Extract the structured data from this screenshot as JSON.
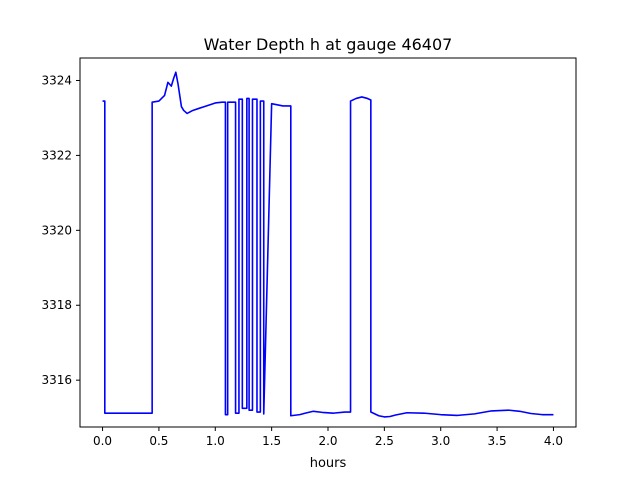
{
  "chart_data": {
    "type": "line",
    "title": "Water Depth h at gauge 46407",
    "xlabel": "hours",
    "ylabel": "",
    "xlim": [
      -0.2,
      4.2
    ],
    "ylim": [
      3314.75,
      3324.6
    ],
    "xticks": [
      0.0,
      0.5,
      1.0,
      1.5,
      2.0,
      2.5,
      3.0,
      3.5,
      4.0
    ],
    "xtick_labels": [
      "0.0",
      "0.5",
      "1.0",
      "1.5",
      "2.0",
      "2.5",
      "3.0",
      "3.5",
      "4.0"
    ],
    "yticks": [
      3316,
      3318,
      3320,
      3322,
      3324
    ],
    "ytick_labels": [
      "3316",
      "3318",
      "3320",
      "3322",
      "3324"
    ],
    "grid": false,
    "line_color": "#0000ff",
    "series": [
      {
        "x": [
          0.0,
          0.02,
          0.02,
          0.44,
          0.44,
          0.5,
          0.55,
          0.58,
          0.61,
          0.63,
          0.65,
          0.67,
          0.7,
          0.72,
          0.75,
          0.8,
          0.85,
          0.9,
          0.95,
          1.0,
          1.06,
          1.09,
          1.09,
          1.11,
          1.11,
          1.18,
          1.18,
          1.21,
          1.21,
          1.24,
          1.24,
          1.28,
          1.28,
          1.3,
          1.3,
          1.33,
          1.33,
          1.37,
          1.37,
          1.4,
          1.4,
          1.43,
          1.43,
          1.5,
          1.6,
          1.67,
          1.67,
          1.75,
          1.8,
          1.87,
          1.95,
          2.05,
          2.15,
          2.2,
          2.2,
          2.25,
          2.3,
          2.35,
          2.38,
          2.38,
          2.45,
          2.5,
          2.55,
          2.6,
          2.7,
          2.85,
          3.0,
          3.15,
          3.3,
          3.45,
          3.6,
          3.7,
          3.8,
          3.9,
          4.0
        ],
        "y": [
          3323.45,
          3323.45,
          3315.12,
          3315.12,
          3323.42,
          3323.45,
          3323.6,
          3323.95,
          3323.85,
          3324.05,
          3324.22,
          3323.9,
          3323.3,
          3323.2,
          3323.12,
          3323.2,
          3323.25,
          3323.3,
          3323.35,
          3323.4,
          3323.42,
          3323.42,
          3315.08,
          3315.08,
          3323.42,
          3323.42,
          3315.12,
          3315.12,
          3323.5,
          3323.5,
          3315.25,
          3315.25,
          3323.52,
          3323.52,
          3315.2,
          3315.2,
          3323.5,
          3323.5,
          3315.15,
          3315.15,
          3323.45,
          3323.45,
          3315.1,
          3323.38,
          3323.32,
          3323.32,
          3315.05,
          3315.08,
          3315.12,
          3315.17,
          3315.14,
          3315.12,
          3315.15,
          3315.15,
          3323.45,
          3323.52,
          3323.56,
          3323.52,
          3323.48,
          3315.15,
          3315.05,
          3315.02,
          3315.03,
          3315.07,
          3315.13,
          3315.12,
          3315.08,
          3315.06,
          3315.1,
          3315.18,
          3315.2,
          3315.17,
          3315.11,
          3315.08,
          3315.08
        ]
      }
    ]
  }
}
